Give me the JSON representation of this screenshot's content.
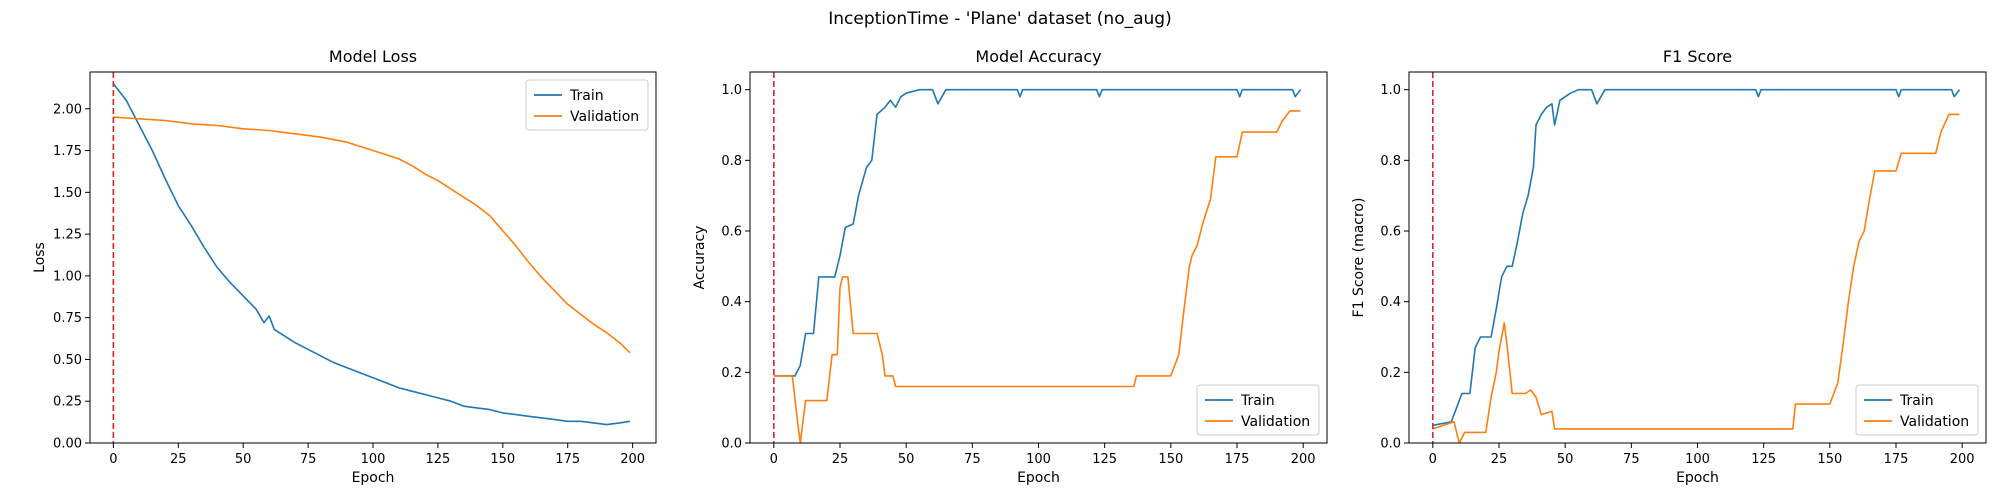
{
  "suptitle": "InceptionTime - 'Plane' dataset (no_aug)",
  "colors": {
    "train": "#1f77b4",
    "validation": "#ff7f0e",
    "marker": "#d62728"
  },
  "chart_data": [
    {
      "type": "line",
      "title": "Model Loss",
      "xlabel": "Epoch",
      "ylabel": "Loss",
      "xlim": [
        -9,
        209
      ],
      "ylim": [
        0.0,
        2.22
      ],
      "xticks": [
        0,
        25,
        50,
        75,
        100,
        125,
        150,
        175,
        200
      ],
      "yticks": [
        0.0,
        0.25,
        0.5,
        0.75,
        1.0,
        1.25,
        1.5,
        1.75,
        2.0
      ],
      "ytick_labels": [
        "0.00",
        "0.25",
        "0.50",
        "0.75",
        "1.00",
        "1.25",
        "1.50",
        "1.75",
        "2.00"
      ],
      "vline_x": 0,
      "legend": "top-right",
      "series": [
        {
          "name": "Train",
          "color": "#1f77b4",
          "points": [
            [
              0,
              2.15
            ],
            [
              5,
              2.05
            ],
            [
              10,
              1.9
            ],
            [
              15,
              1.75
            ],
            [
              20,
              1.58
            ],
            [
              25,
              1.42
            ],
            [
              30,
              1.3
            ],
            [
              35,
              1.17
            ],
            [
              40,
              1.05
            ],
            [
              45,
              0.96
            ],
            [
              50,
              0.88
            ],
            [
              55,
              0.8
            ],
            [
              58,
              0.72
            ],
            [
              60,
              0.76
            ],
            [
              62,
              0.68
            ],
            [
              65,
              0.65
            ],
            [
              70,
              0.6
            ],
            [
              75,
              0.56
            ],
            [
              80,
              0.52
            ],
            [
              85,
              0.48
            ],
            [
              90,
              0.45
            ],
            [
              95,
              0.42
            ],
            [
              100,
              0.39
            ],
            [
              105,
              0.36
            ],
            [
              110,
              0.33
            ],
            [
              115,
              0.31
            ],
            [
              120,
              0.29
            ],
            [
              125,
              0.27
            ],
            [
              130,
              0.25
            ],
            [
              135,
              0.22
            ],
            [
              140,
              0.21
            ],
            [
              145,
              0.2
            ],
            [
              150,
              0.18
            ],
            [
              155,
              0.17
            ],
            [
              160,
              0.16
            ],
            [
              165,
              0.15
            ],
            [
              170,
              0.14
            ],
            [
              175,
              0.13
            ],
            [
              180,
              0.13
            ],
            [
              185,
              0.12
            ],
            [
              190,
              0.11
            ],
            [
              195,
              0.12
            ],
            [
              199,
              0.13
            ]
          ]
        },
        {
          "name": "Validation",
          "color": "#ff7f0e",
          "points": [
            [
              0,
              1.95
            ],
            [
              10,
              1.94
            ],
            [
              20,
              1.93
            ],
            [
              30,
              1.91
            ],
            [
              40,
              1.9
            ],
            [
              50,
              1.88
            ],
            [
              60,
              1.87
            ],
            [
              70,
              1.85
            ],
            [
              80,
              1.83
            ],
            [
              90,
              1.8
            ],
            [
              100,
              1.75
            ],
            [
              110,
              1.7
            ],
            [
              115,
              1.66
            ],
            [
              120,
              1.61
            ],
            [
              125,
              1.57
            ],
            [
              130,
              1.52
            ],
            [
              135,
              1.47
            ],
            [
              140,
              1.42
            ],
            [
              145,
              1.36
            ],
            [
              150,
              1.27
            ],
            [
              155,
              1.18
            ],
            [
              160,
              1.08
            ],
            [
              165,
              0.99
            ],
            [
              170,
              0.91
            ],
            [
              175,
              0.83
            ],
            [
              180,
              0.77
            ],
            [
              185,
              0.71
            ],
            [
              190,
              0.66
            ],
            [
              195,
              0.6
            ],
            [
              199,
              0.54
            ]
          ]
        }
      ]
    },
    {
      "type": "line",
      "title": "Model Accuracy",
      "xlabel": "Epoch",
      "ylabel": "Accuracy",
      "xlim": [
        -9,
        209
      ],
      "ylim": [
        0.0,
        1.05
      ],
      "xticks": [
        0,
        25,
        50,
        75,
        100,
        125,
        150,
        175,
        200
      ],
      "yticks": [
        0.0,
        0.2,
        0.4,
        0.6,
        0.8,
        1.0
      ],
      "ytick_labels": [
        "0.0",
        "0.2",
        "0.4",
        "0.6",
        "0.8",
        "1.0"
      ],
      "vline_x": 0,
      "legend": "bottom-right",
      "series": [
        {
          "name": "Train",
          "color": "#1f77b4",
          "points": [
            [
              0,
              0.19
            ],
            [
              8,
              0.19
            ],
            [
              10,
              0.22
            ],
            [
              12,
              0.31
            ],
            [
              15,
              0.31
            ],
            [
              17,
              0.47
            ],
            [
              23,
              0.47
            ],
            [
              25,
              0.53
            ],
            [
              27,
              0.61
            ],
            [
              30,
              0.62
            ],
            [
              32,
              0.7
            ],
            [
              35,
              0.78
            ],
            [
              37,
              0.8
            ],
            [
              39,
              0.93
            ],
            [
              42,
              0.95
            ],
            [
              44,
              0.97
            ],
            [
              46,
              0.95
            ],
            [
              48,
              0.98
            ],
            [
              50,
              0.99
            ],
            [
              55,
              1.0
            ],
            [
              60,
              1.0
            ],
            [
              62,
              0.96
            ],
            [
              65,
              1.0
            ],
            [
              92,
              1.0
            ],
            [
              93,
              0.98
            ],
            [
              94,
              1.0
            ],
            [
              122,
              1.0
            ],
            [
              123,
              0.98
            ],
            [
              124,
              1.0
            ],
            [
              175,
              1.0
            ],
            [
              176,
              0.98
            ],
            [
              177,
              1.0
            ],
            [
              196,
              1.0
            ],
            [
              197,
              0.98
            ],
            [
              199,
              1.0
            ]
          ]
        },
        {
          "name": "Validation",
          "color": "#ff7f0e",
          "points": [
            [
              0,
              0.19
            ],
            [
              7,
              0.19
            ],
            [
              9,
              0.06
            ],
            [
              10,
              0.0
            ],
            [
              12,
              0.12
            ],
            [
              20,
              0.12
            ],
            [
              22,
              0.25
            ],
            [
              24,
              0.25
            ],
            [
              25,
              0.44
            ],
            [
              26,
              0.47
            ],
            [
              28,
              0.47
            ],
            [
              30,
              0.31
            ],
            [
              39,
              0.31
            ],
            [
              41,
              0.25
            ],
            [
              42,
              0.19
            ],
            [
              45,
              0.19
            ],
            [
              46,
              0.16
            ],
            [
              136,
              0.16
            ],
            [
              137,
              0.19
            ],
            [
              150,
              0.19
            ],
            [
              153,
              0.25
            ],
            [
              155,
              0.38
            ],
            [
              157,
              0.5
            ],
            [
              158,
              0.53
            ],
            [
              160,
              0.56
            ],
            [
              162,
              0.62
            ],
            [
              165,
              0.69
            ],
            [
              167,
              0.81
            ],
            [
              175,
              0.81
            ],
            [
              177,
              0.88
            ],
            [
              190,
              0.88
            ],
            [
              192,
              0.91
            ],
            [
              195,
              0.94
            ],
            [
              199,
              0.94
            ]
          ]
        }
      ]
    },
    {
      "type": "line",
      "title": "F1 Score",
      "xlabel": "Epoch",
      "ylabel": "F1 Score (macro)",
      "xlim": [
        -9,
        209
      ],
      "ylim": [
        0.0,
        1.05
      ],
      "xticks": [
        0,
        25,
        50,
        75,
        100,
        125,
        150,
        175,
        200
      ],
      "yticks": [
        0.0,
        0.2,
        0.4,
        0.6,
        0.8,
        1.0
      ],
      "ytick_labels": [
        "0.0",
        "0.2",
        "0.4",
        "0.6",
        "0.8",
        "1.0"
      ],
      "vline_x": 0,
      "legend": "bottom-right",
      "series": [
        {
          "name": "Train",
          "color": "#1f77b4",
          "points": [
            [
              0,
              0.05
            ],
            [
              7,
              0.06
            ],
            [
              9,
              0.1
            ],
            [
              11,
              0.14
            ],
            [
              14,
              0.14
            ],
            [
              16,
              0.27
            ],
            [
              18,
              0.3
            ],
            [
              22,
              0.3
            ],
            [
              24,
              0.38
            ],
            [
              26,
              0.47
            ],
            [
              28,
              0.5
            ],
            [
              30,
              0.5
            ],
            [
              32,
              0.57
            ],
            [
              34,
              0.65
            ],
            [
              36,
              0.7
            ],
            [
              38,
              0.78
            ],
            [
              39,
              0.9
            ],
            [
              41,
              0.93
            ],
            [
              43,
              0.95
            ],
            [
              45,
              0.96
            ],
            [
              46,
              0.9
            ],
            [
              48,
              0.97
            ],
            [
              52,
              0.99
            ],
            [
              55,
              1.0
            ],
            [
              60,
              1.0
            ],
            [
              62,
              0.96
            ],
            [
              65,
              1.0
            ],
            [
              122,
              1.0
            ],
            [
              123,
              0.98
            ],
            [
              124,
              1.0
            ],
            [
              175,
              1.0
            ],
            [
              176,
              0.98
            ],
            [
              177,
              1.0
            ],
            [
              196,
              1.0
            ],
            [
              197,
              0.98
            ],
            [
              199,
              1.0
            ]
          ]
        },
        {
          "name": "Validation",
          "color": "#ff7f0e",
          "points": [
            [
              0,
              0.04
            ],
            [
              8,
              0.06
            ],
            [
              10,
              0.0
            ],
            [
              12,
              0.03
            ],
            [
              20,
              0.03
            ],
            [
              22,
              0.13
            ],
            [
              24,
              0.2
            ],
            [
              25,
              0.26
            ],
            [
              27,
              0.34
            ],
            [
              28,
              0.28
            ],
            [
              30,
              0.14
            ],
            [
              35,
              0.14
            ],
            [
              37,
              0.15
            ],
            [
              39,
              0.13
            ],
            [
              41,
              0.08
            ],
            [
              45,
              0.09
            ],
            [
              46,
              0.04
            ],
            [
              136,
              0.04
            ],
            [
              137,
              0.11
            ],
            [
              150,
              0.11
            ],
            [
              153,
              0.17
            ],
            [
              155,
              0.28
            ],
            [
              157,
              0.4
            ],
            [
              159,
              0.5
            ],
            [
              161,
              0.57
            ],
            [
              163,
              0.6
            ],
            [
              165,
              0.69
            ],
            [
              167,
              0.77
            ],
            [
              175,
              0.77
            ],
            [
              177,
              0.82
            ],
            [
              190,
              0.82
            ],
            [
              192,
              0.88
            ],
            [
              195,
              0.93
            ],
            [
              199,
              0.93
            ]
          ]
        }
      ]
    }
  ]
}
